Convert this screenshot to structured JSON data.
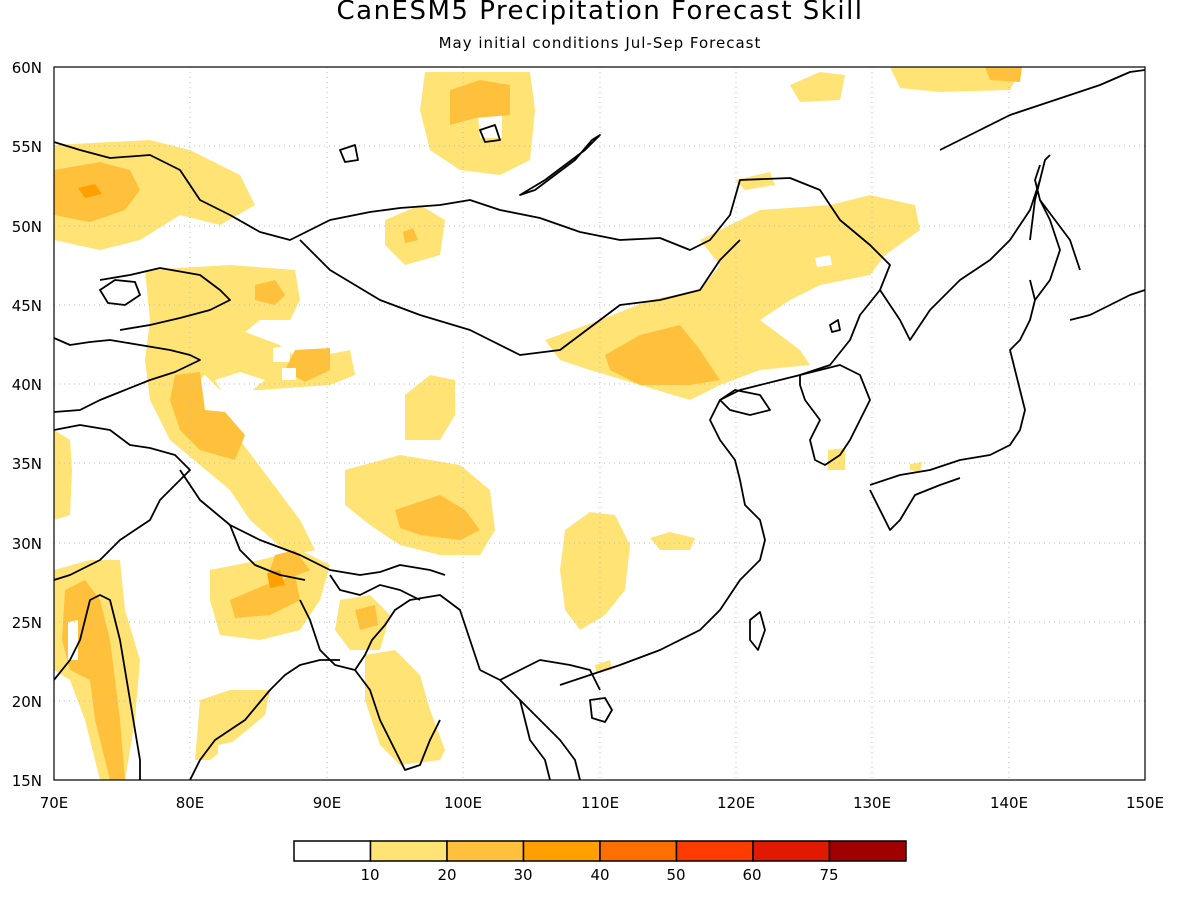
{
  "title": "CanESM5 Precipitation Forecast Skill",
  "subtitle": "May initial conditions  Jul-Sep Forecast",
  "map": {
    "lon_labels": [
      "70E",
      "80E",
      "90E",
      "100E",
      "110E",
      "120E",
      "130E",
      "140E",
      "150E"
    ],
    "lat_labels": [
      "15N",
      "20N",
      "25N",
      "30N",
      "35N",
      "40N",
      "45N",
      "50N",
      "55N",
      "60N"
    ],
    "lon_range": [
      70,
      150
    ],
    "lat_range": [
      15,
      60
    ],
    "grid": "dotted"
  },
  "colorbar": {
    "labels": [
      "10",
      "20",
      "30",
      "40",
      "50",
      "60",
      "75"
    ],
    "colors": [
      "#ffffff",
      "#ffe375",
      "#ffc13c",
      "#ffa000",
      "#ff6e00",
      "#ff3c00",
      "#e01a00",
      "#a00000"
    ]
  }
}
